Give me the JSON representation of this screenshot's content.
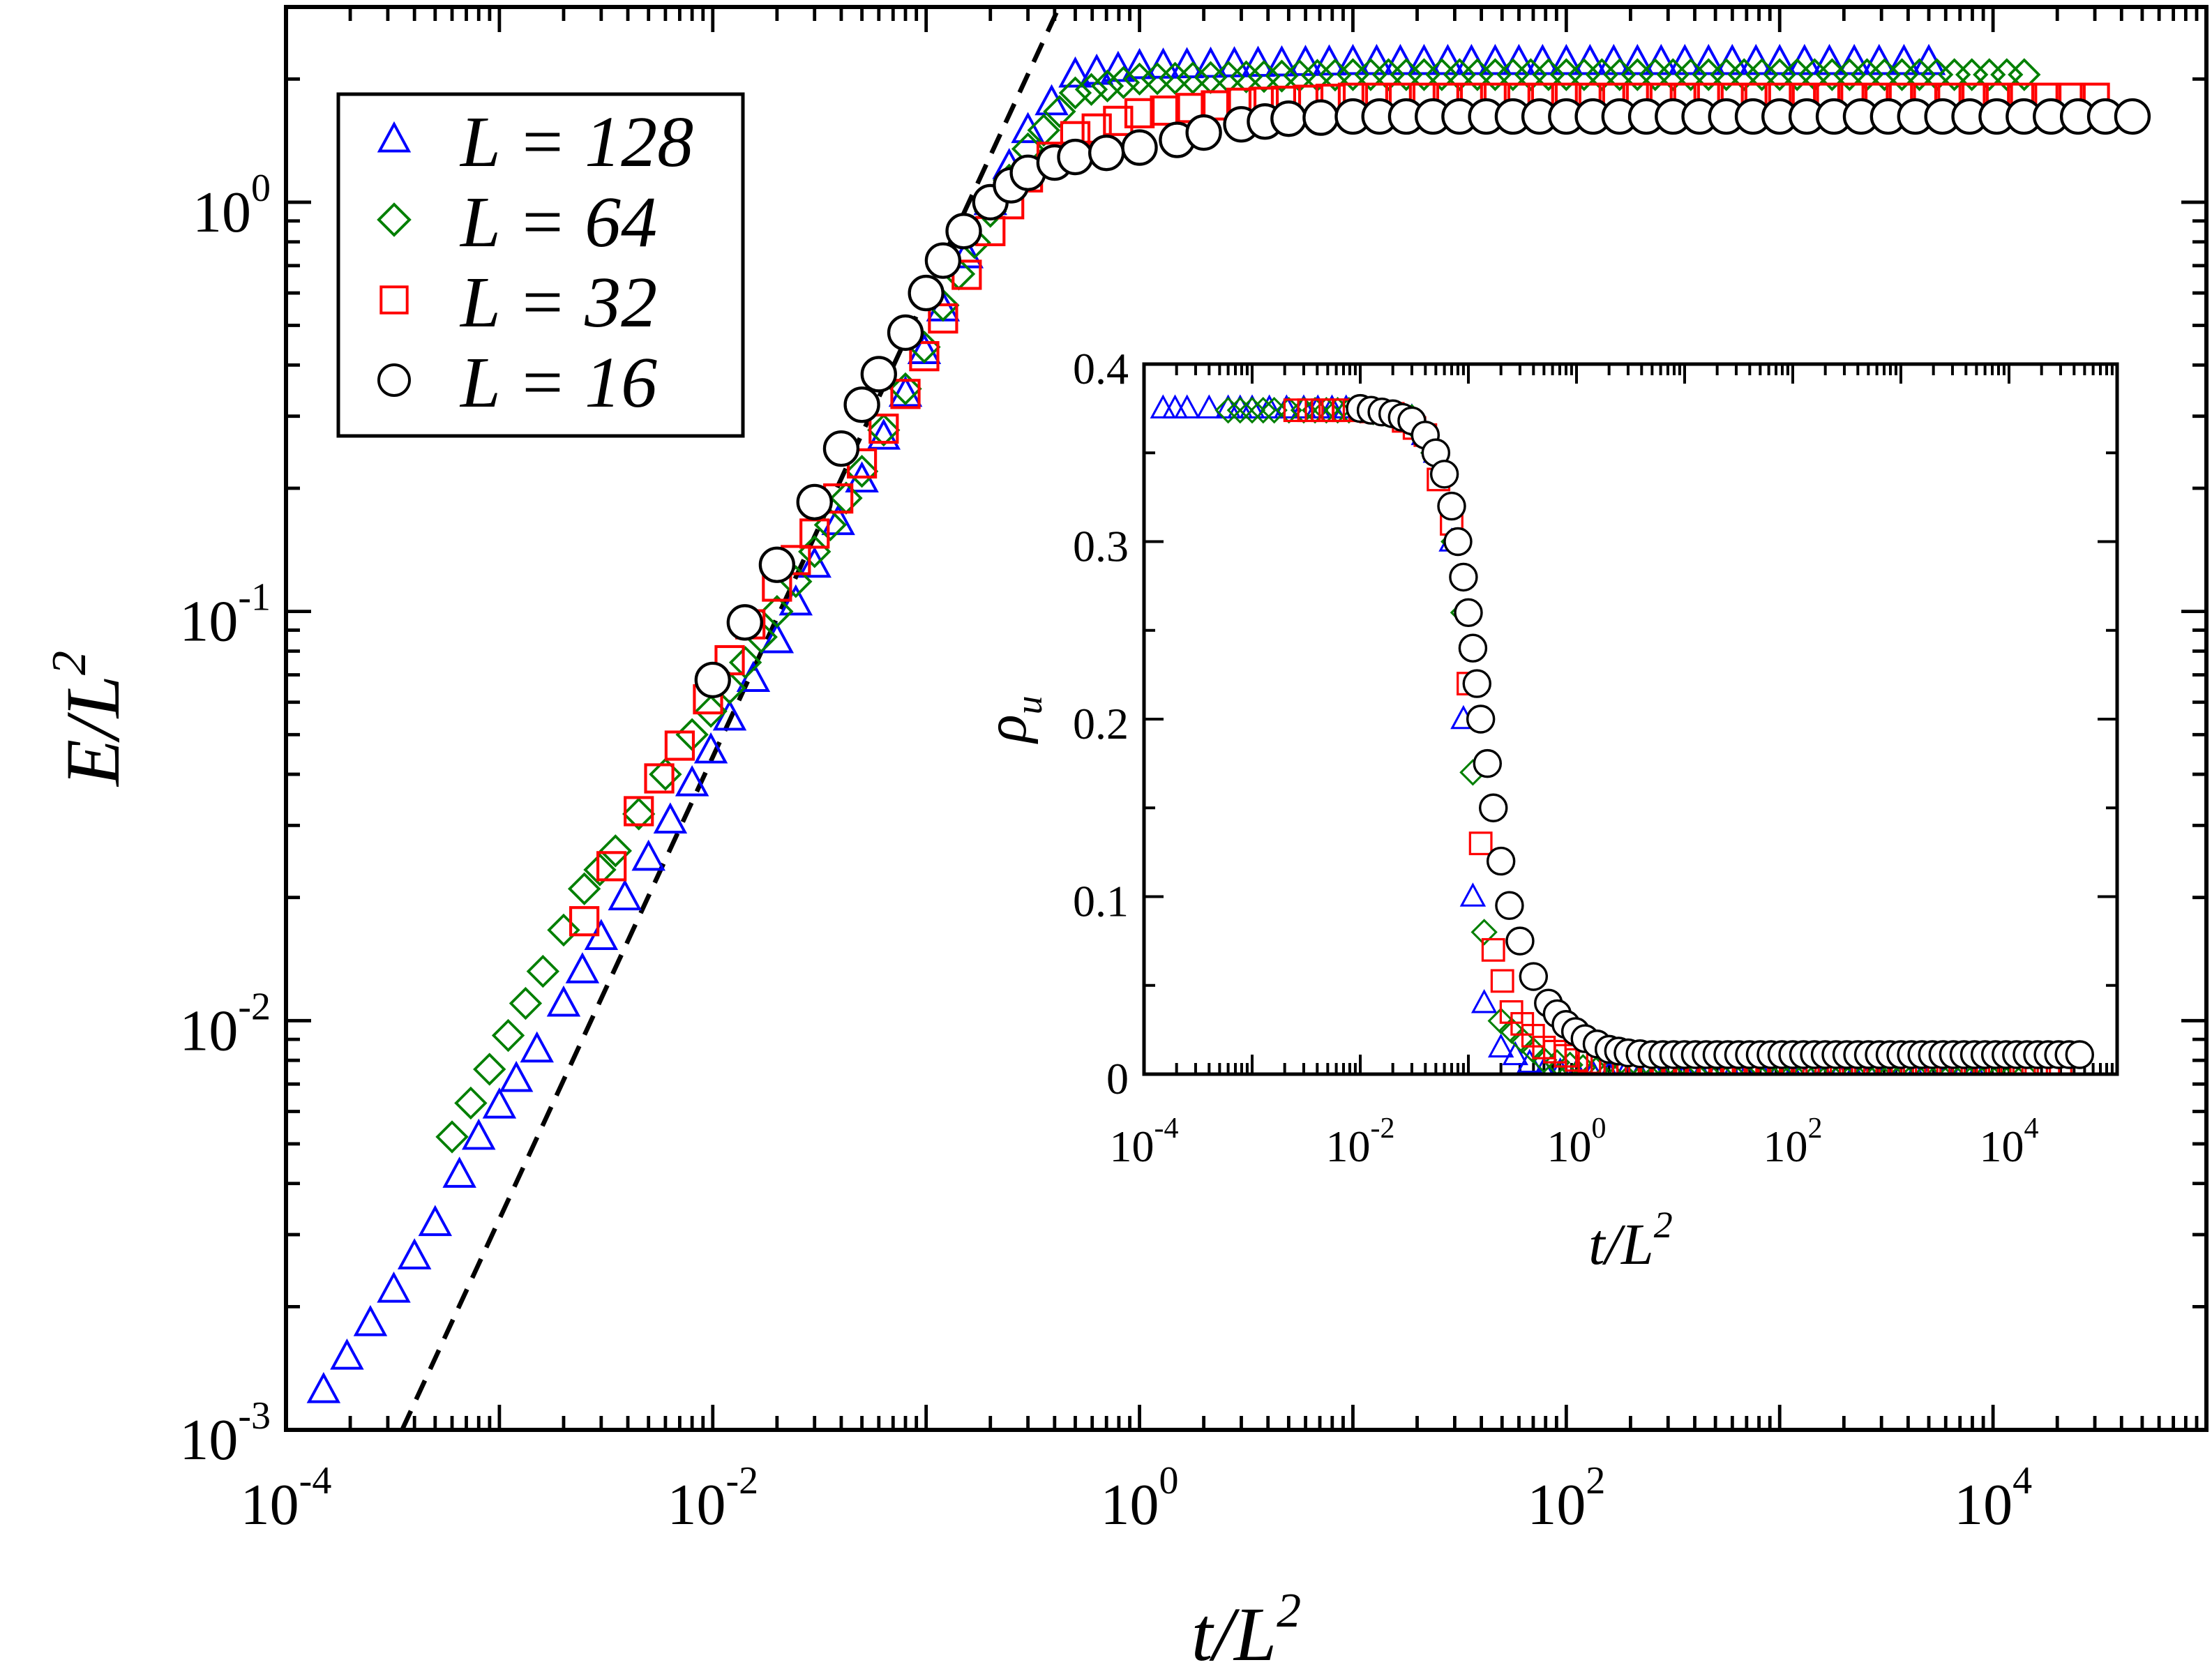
{
  "chart_data": [
    {
      "type": "scatter",
      "xlabel": "t/L",
      "xlabel_sup": "2",
      "ylabel": "E/L",
      "ylabel_sup": "2",
      "xscale": "log",
      "yscale": "log",
      "xlim": [
        0.0001,
        100000
      ],
      "ylim": [
        0.001,
        3
      ],
      "x_ticks": [
        {
          "base": "10",
          "exp": "-4"
        },
        {
          "base": "10",
          "exp": "-2"
        },
        {
          "base": "10",
          "exp": "0"
        },
        {
          "base": "10",
          "exp": "2"
        },
        {
          "base": "10",
          "exp": "4"
        }
      ],
      "y_ticks": [
        {
          "base": "10",
          "exp": "-3"
        },
        {
          "base": "10",
          "exp": "-2"
        },
        {
          "base": "10",
          "exp": "-1"
        },
        {
          "base": "10",
          "exp": "0"
        }
      ],
      "legend": {
        "position": "top-left",
        "entries": [
          {
            "label": "L = 128",
            "marker": "triangle",
            "color": "#0000ff"
          },
          {
            "label": "L = 64",
            "marker": "diamond",
            "color": "#007f00"
          },
          {
            "label": "L = 32",
            "marker": "square",
            "color": "#ff0000"
          },
          {
            "label": "L = 16",
            "marker": "circle",
            "color": "#000000"
          }
        ]
      },
      "reference_line": {
        "style": "dashed",
        "color": "#000000",
        "points": [
          [
            0.00035,
            0.001
          ],
          [
            1,
            8
          ]
        ]
      },
      "series": [
        {
          "name": "L = 128",
          "marker": "triangle",
          "color": "#0000ff",
          "points": [
            [
              0.00015,
              0.00125
            ],
            [
              0.00032,
              0.0022
            ],
            [
              0.0005,
              0.0032
            ],
            [
              0.00065,
              0.0042
            ],
            [
              0.0008,
              0.0052
            ],
            [
              0.001,
              0.0062
            ],
            [
              0.0012,
              0.0072
            ],
            [
              0.0015,
              0.0085
            ],
            [
              0.002,
              0.011
            ],
            [
              0.003,
              0.016
            ],
            [
              0.005,
              0.025
            ],
            [
              0.008,
              0.038
            ],
            [
              0.012,
              0.055
            ],
            [
              0.02,
              0.085
            ],
            [
              0.03,
              0.13
            ],
            [
              0.05,
              0.21
            ],
            [
              0.08,
              0.34
            ],
            [
              0.12,
              0.55
            ],
            [
              0.2,
              1.0
            ],
            [
              0.3,
              1.5
            ],
            [
              0.5,
              2.05
            ],
            [
              1,
              2.15
            ],
            [
              10,
              2.2
            ],
            [
              100,
              2.2
            ],
            [
              1000,
              2.2
            ],
            [
              5000,
              2.2
            ]
          ]
        },
        {
          "name": "L = 64",
          "marker": "diamond",
          "color": "#007f00",
          "points": [
            [
              0.0006,
              0.0052
            ],
            [
              0.0011,
              0.0092
            ],
            [
              0.0016,
              0.0132
            ],
            [
              0.0025,
              0.021
            ],
            [
              0.0035,
              0.026
            ],
            [
              0.0045,
              0.032
            ],
            [
              0.006,
              0.04
            ],
            [
              0.008,
              0.05
            ],
            [
              0.012,
              0.065
            ],
            [
              0.02,
              0.1
            ],
            [
              0.03,
              0.14
            ],
            [
              0.05,
              0.22
            ],
            [
              0.08,
              0.35
            ],
            [
              0.12,
              0.56
            ],
            [
              0.2,
              0.95
            ],
            [
              0.3,
              1.35
            ],
            [
              0.5,
              1.85
            ],
            [
              1,
              2.0
            ],
            [
              10,
              2.05
            ],
            [
              100,
              2.05
            ],
            [
              1000,
              2.05
            ],
            [
              14000,
              2.05
            ]
          ]
        },
        {
          "name": "L = 32",
          "marker": "square",
          "color": "#ff0000",
          "points": [
            [
              0.0025,
              0.0175
            ],
            [
              0.0045,
              0.0325
            ],
            [
              0.007,
              0.047
            ],
            [
              0.0095,
              0.061
            ],
            [
              0.012,
              0.076
            ],
            [
              0.015,
              0.093
            ],
            [
              0.02,
              0.115
            ],
            [
              0.03,
              0.155
            ],
            [
              0.05,
              0.23
            ],
            [
              0.08,
              0.34
            ],
            [
              0.12,
              0.52
            ],
            [
              0.2,
              0.85
            ],
            [
              0.3,
              1.15
            ],
            [
              0.5,
              1.45
            ],
            [
              1,
              1.65
            ],
            [
              3,
              1.75
            ],
            [
              10,
              1.8
            ],
            [
              100,
              1.8
            ],
            [
              1000,
              1.8
            ],
            [
              30000,
              1.8
            ]
          ]
        },
        {
          "name": "L = 16",
          "marker": "circle",
          "color": "#000000",
          "points": [
            [
              0.01,
              0.068
            ],
            [
              0.02,
              0.13
            ],
            [
              0.03,
              0.185
            ],
            [
              0.04,
              0.25
            ],
            [
              0.05,
              0.32
            ],
            [
              0.06,
              0.38
            ],
            [
              0.08,
              0.48
            ],
            [
              0.1,
              0.6
            ],
            [
              0.12,
              0.72
            ],
            [
              0.15,
              0.85
            ],
            [
              0.2,
              1.0
            ],
            [
              0.25,
              1.1
            ],
            [
              0.3,
              1.18
            ],
            [
              0.4,
              1.25
            ],
            [
              0.5,
              1.29
            ],
            [
              0.7,
              1.32
            ],
            [
              1,
              1.36
            ],
            [
              1.5,
              1.42
            ],
            [
              2,
              1.48
            ],
            [
              3,
              1.55
            ],
            [
              5,
              1.6
            ],
            [
              10,
              1.62
            ],
            [
              100,
              1.62
            ],
            [
              1000,
              1.62
            ],
            [
              45000,
              1.62
            ]
          ]
        }
      ]
    },
    {
      "type": "scatter",
      "xlabel": "t/L",
      "xlabel_sup": "2",
      "ylabel": "ρ",
      "ylabel_sub": "u",
      "xscale": "log",
      "yscale": "linear",
      "xlim": [
        0.0001,
        100000
      ],
      "ylim": [
        0,
        0.4
      ],
      "x_ticks": [
        {
          "base": "10",
          "exp": "-4"
        },
        {
          "base": "10",
          "exp": "-2"
        },
        {
          "base": "10",
          "exp": "0"
        },
        {
          "base": "10",
          "exp": "2"
        },
        {
          "base": "10",
          "exp": "4"
        }
      ],
      "y_ticks": [
        "0",
        "0.1",
        "0.2",
        "0.3",
        "0.4"
      ],
      "series": [
        {
          "name": "L = 128",
          "marker": "triangle",
          "color": "#0000ff",
          "points": [
            [
              0.00015,
              0.375
            ],
            [
              0.00025,
              0.375
            ],
            [
              0.0004,
              0.375
            ],
            [
              0.0006,
              0.375
            ],
            [
              0.001,
              0.375
            ],
            [
              0.003,
              0.375
            ],
            [
              0.01,
              0.375
            ],
            [
              0.03,
              0.37
            ],
            [
              0.05,
              0.35
            ],
            [
              0.07,
              0.3
            ],
            [
              0.09,
              0.2
            ],
            [
              0.11,
              0.1
            ],
            [
              0.14,
              0.04
            ],
            [
              0.2,
              0.015
            ],
            [
              0.5,
              0.002
            ],
            [
              2,
              0
            ],
            [
              100,
              0
            ],
            [
              5000,
              0
            ]
          ]
        },
        {
          "name": "L = 64",
          "marker": "diamond",
          "color": "#007f00",
          "points": [
            [
              0.0006,
              0.374
            ],
            [
              0.001,
              0.374
            ],
            [
              0.0016,
              0.374
            ],
            [
              0.003,
              0.374
            ],
            [
              0.01,
              0.374
            ],
            [
              0.03,
              0.37
            ],
            [
              0.06,
              0.34
            ],
            [
              0.09,
              0.26
            ],
            [
              0.11,
              0.17
            ],
            [
              0.14,
              0.08
            ],
            [
              0.2,
              0.03
            ],
            [
              0.5,
              0.008
            ],
            [
              2,
              0.001
            ],
            [
              100,
              0
            ],
            [
              14000,
              0
            ]
          ]
        },
        {
          "name": "L = 32",
          "marker": "square",
          "color": "#ff0000",
          "points": [
            [
              0.0025,
              0.374
            ],
            [
              0.0045,
              0.374
            ],
            [
              0.007,
              0.374
            ],
            [
              0.01,
              0.374
            ],
            [
              0.02,
              0.372
            ],
            [
              0.04,
              0.36
            ],
            [
              0.07,
              0.31
            ],
            [
              0.1,
              0.22
            ],
            [
              0.13,
              0.13
            ],
            [
              0.17,
              0.07
            ],
            [
              0.25,
              0.035
            ],
            [
              0.5,
              0.015
            ],
            [
              1,
              0.008
            ],
            [
              3,
              0.003
            ],
            [
              100,
              0.003
            ],
            [
              30000,
              0.003
            ]
          ]
        },
        {
          "name": "L = 16",
          "marker": "circle",
          "color": "#000000",
          "points": [
            [
              0.01,
              0.375
            ],
            [
              0.02,
              0.372
            ],
            [
              0.03,
              0.368
            ],
            [
              0.04,
              0.36
            ],
            [
              0.05,
              0.35
            ],
            [
              0.06,
              0.338
            ],
            [
              0.07,
              0.32
            ],
            [
              0.08,
              0.3
            ],
            [
              0.09,
              0.28
            ],
            [
              0.1,
              0.26
            ],
            [
              0.11,
              0.24
            ],
            [
              0.12,
              0.22
            ],
            [
              0.13,
              0.2
            ],
            [
              0.15,
              0.175
            ],
            [
              0.17,
              0.15
            ],
            [
              0.2,
              0.12
            ],
            [
              0.24,
              0.095
            ],
            [
              0.3,
              0.075
            ],
            [
              0.4,
              0.055
            ],
            [
              0.55,
              0.04
            ],
            [
              0.8,
              0.028
            ],
            [
              1.2,
              0.02
            ],
            [
              2,
              0.014
            ],
            [
              3,
              0.012
            ],
            [
              5,
              0.011
            ],
            [
              100,
              0.011
            ],
            [
              1000,
              0.011
            ],
            [
              45000,
              0.011
            ]
          ]
        }
      ]
    }
  ]
}
